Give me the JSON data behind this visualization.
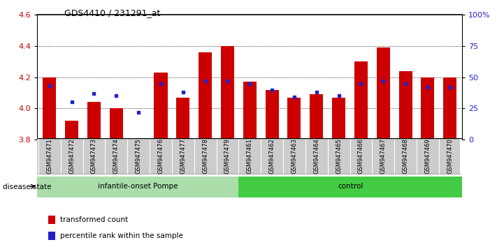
{
  "title": "GDS4410 / 231291_at",
  "samples": [
    "GSM947471",
    "GSM947472",
    "GSM947473",
    "GSM947474",
    "GSM947475",
    "GSM947476",
    "GSM947477",
    "GSM947478",
    "GSM947479",
    "GSM947461",
    "GSM947462",
    "GSM947463",
    "GSM947464",
    "GSM947465",
    "GSM947466",
    "GSM947467",
    "GSM947468",
    "GSM947469",
    "GSM947470"
  ],
  "red_values": [
    4.2,
    3.92,
    4.04,
    4.0,
    3.81,
    4.23,
    4.07,
    4.36,
    4.4,
    4.17,
    4.12,
    4.07,
    4.09,
    4.07,
    4.3,
    4.39,
    4.24,
    4.2,
    4.2
  ],
  "blue_pct": [
    43,
    30,
    37,
    35,
    22,
    45,
    38,
    47,
    47,
    45,
    40,
    34,
    38,
    35,
    45,
    47,
    45,
    42,
    42
  ],
  "ylim_left": [
    3.8,
    4.6
  ],
  "ylim_right": [
    0,
    100
  ],
  "yticks_left": [
    3.8,
    4.0,
    4.2,
    4.4,
    4.6
  ],
  "yticks_right": [
    0,
    25,
    50,
    75,
    100
  ],
  "bar_color": "#cc0000",
  "dot_color": "#2222cc",
  "group1_label": "infantile-onset Pompe",
  "group2_label": "control",
  "group1_color": "#aaddaa",
  "group2_color": "#44cc44",
  "group1_count": 9,
  "legend_red": "transformed count",
  "legend_blue": "percentile rank within the sample",
  "disease_state_label": "disease state"
}
